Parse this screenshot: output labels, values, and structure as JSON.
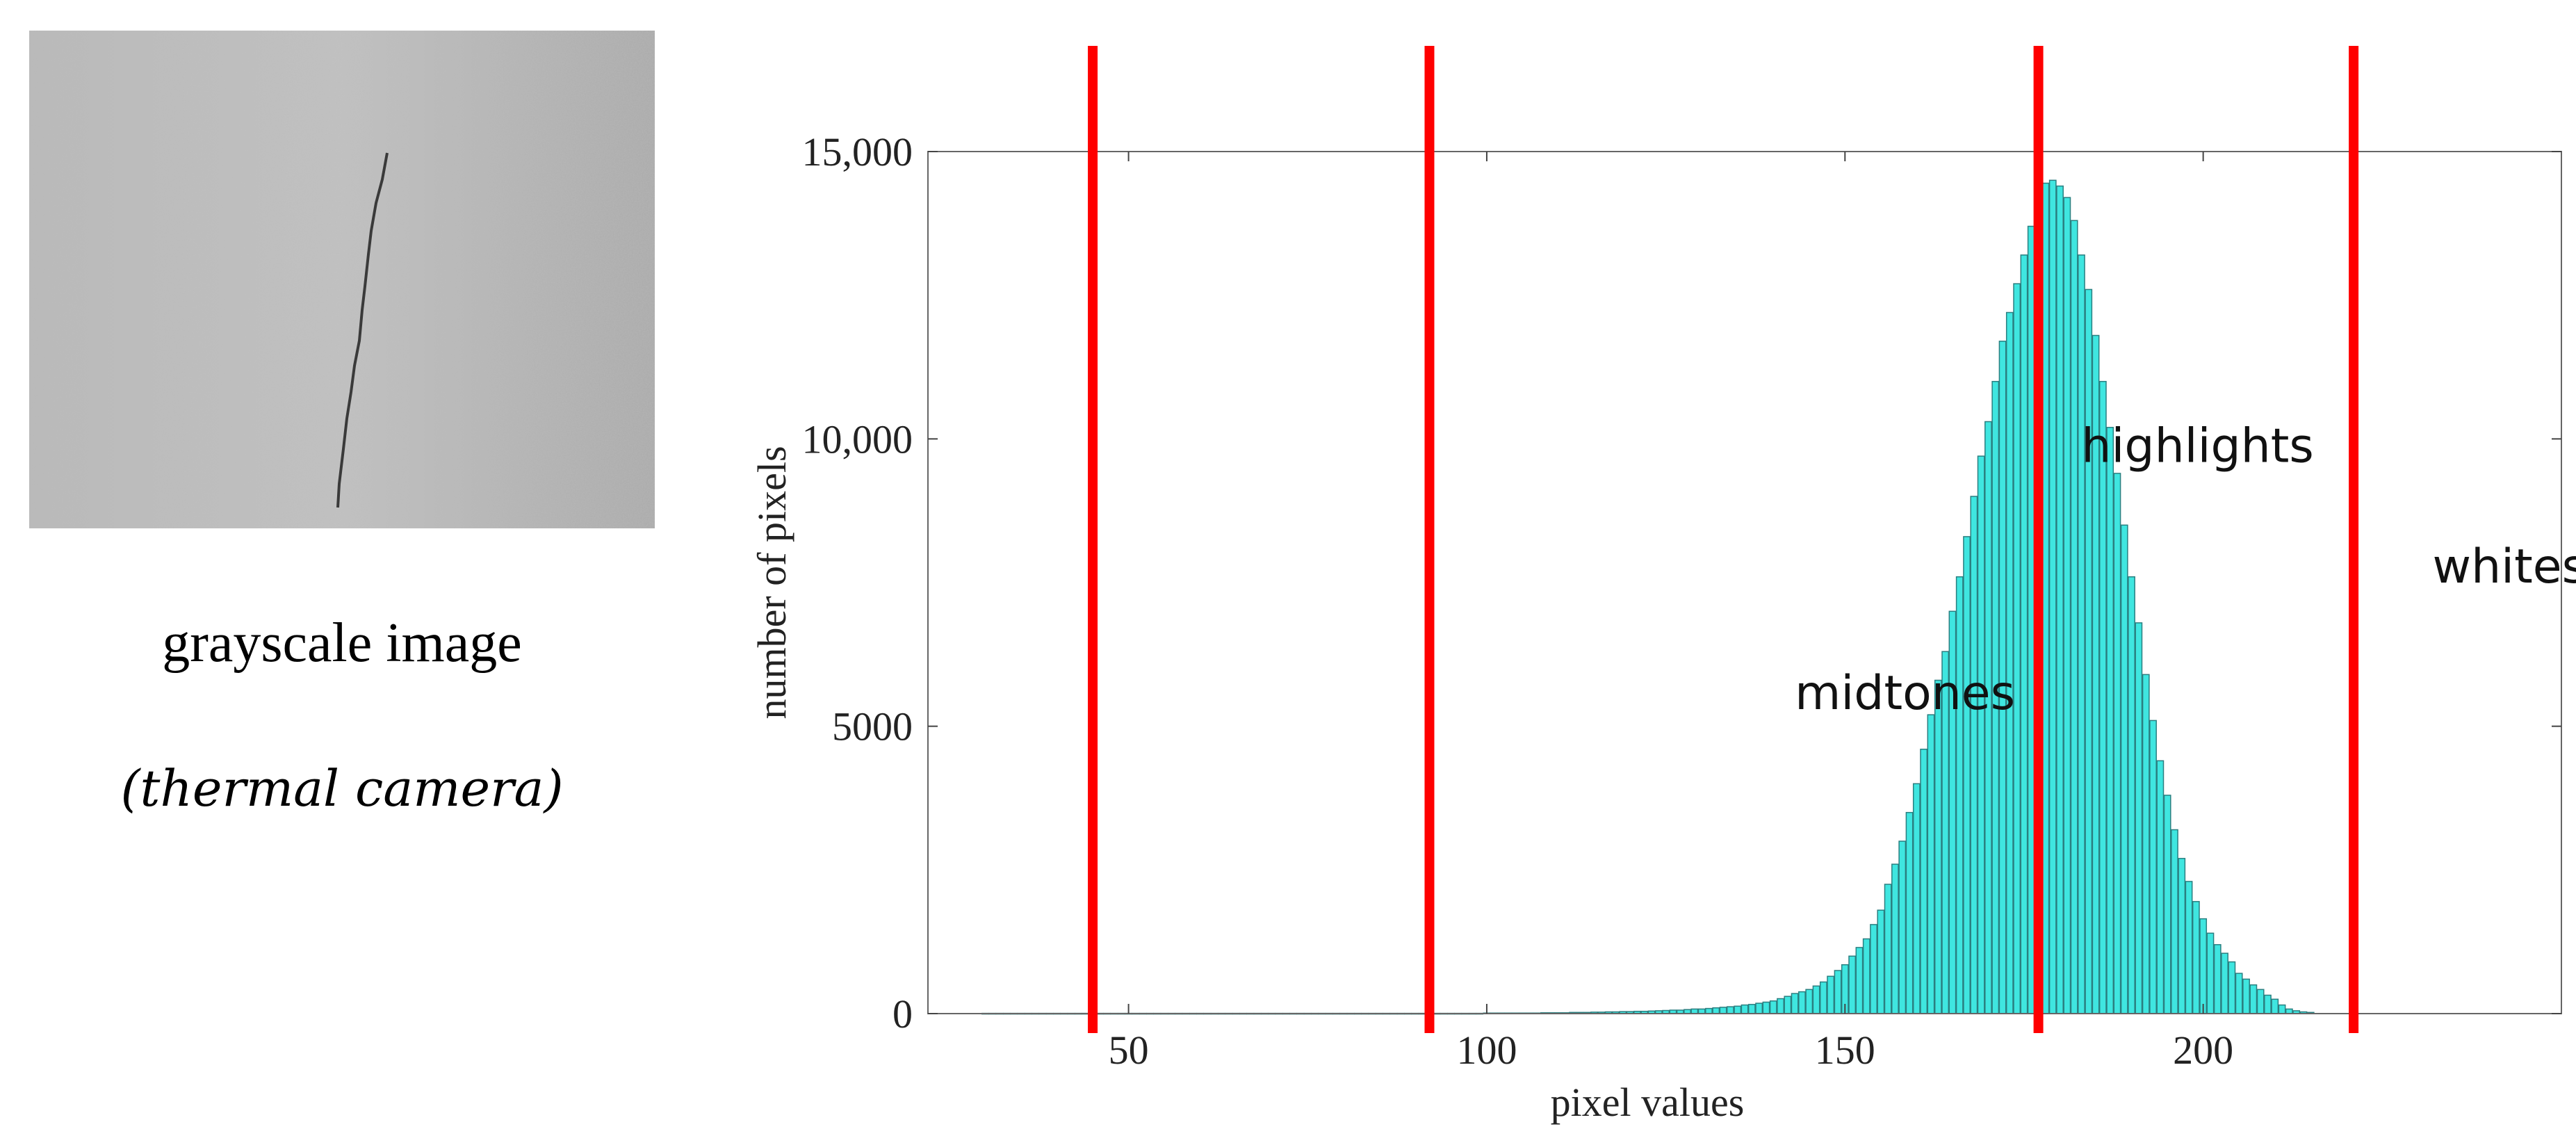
{
  "image_panel": {
    "caption": "grayscale image",
    "subcaption": "(thermal camera)"
  },
  "chart_data": {
    "type": "bar",
    "xlabel": "pixel values",
    "ylabel": "number of pixels",
    "xlim": [
      22,
      250
    ],
    "ylim": [
      0,
      15000
    ],
    "x_ticks": [
      50,
      100,
      150,
      200
    ],
    "y_ticks": [
      {
        "value": 0,
        "label": "0"
      },
      {
        "value": 5000,
        "label": "5000"
      },
      {
        "value": 10000,
        "label": "10,000"
      },
      {
        "value": 15000,
        "label": "15,000"
      }
    ],
    "bar_color": "#3fe6e0",
    "bar_edge_color": "#2a7f80",
    "bin_start": 30,
    "values": [
      5,
      5,
      5,
      5,
      5,
      5,
      5,
      5,
      5,
      5,
      5,
      5,
      5,
      5,
      5,
      5,
      5,
      5,
      5,
      5,
      5,
      5,
      5,
      5,
      5,
      5,
      5,
      5,
      5,
      5,
      5,
      5,
      5,
      5,
      5,
      5,
      5,
      5,
      5,
      5,
      5,
      5,
      5,
      5,
      5,
      5,
      5,
      5,
      5,
      5,
      5,
      5,
      5,
      5,
      5,
      5,
      5,
      5,
      5,
      5,
      5,
      5,
      5,
      5,
      5,
      5,
      5,
      5,
      5,
      5,
      10,
      10,
      10,
      10,
      10,
      10,
      10,
      10,
      15,
      15,
      15,
      15,
      20,
      20,
      20,
      25,
      25,
      30,
      30,
      35,
      35,
      40,
      40,
      45,
      50,
      55,
      60,
      60,
      70,
      80,
      80,
      90,
      100,
      110,
      120,
      130,
      150,
      160,
      180,
      200,
      220,
      260,
      300,
      350,
      380,
      420,
      480,
      550,
      650,
      750,
      850,
      1000,
      1150,
      1300,
      1550,
      1800,
      2250,
      2600,
      3000,
      3500,
      4000,
      4600,
      5200,
      5800,
      6300,
      7000,
      7600,
      8300,
      9000,
      9700,
      10300,
      11000,
      11700,
      12200,
      12700,
      13200,
      13700,
      14100,
      14450,
      14500,
      14400,
      14200,
      13800,
      13200,
      12600,
      11800,
      11000,
      10200,
      9400,
      8500,
      7600,
      6800,
      5900,
      5100,
      4400,
      3800,
      3200,
      2700,
      2300,
      1950,
      1650,
      1400,
      1200,
      1050,
      900,
      700,
      600,
      500,
      420,
      320,
      250,
      150,
      80,
      50,
      30,
      20
    ],
    "thresholds": [
      {
        "x": 45,
        "color": "#ff0000"
      },
      {
        "x": 92,
        "color": "#ff0000"
      },
      {
        "x": 177,
        "color": "#ff0000"
      },
      {
        "x": 221,
        "color": "#ff0000"
      }
    ],
    "annotations": [
      {
        "text": "midtones",
        "x": 143,
        "y": 5300
      },
      {
        "text": "highlights",
        "x": 183,
        "y": 9600
      },
      {
        "text": "whites",
        "x": 232,
        "y": 7500
      }
    ]
  }
}
